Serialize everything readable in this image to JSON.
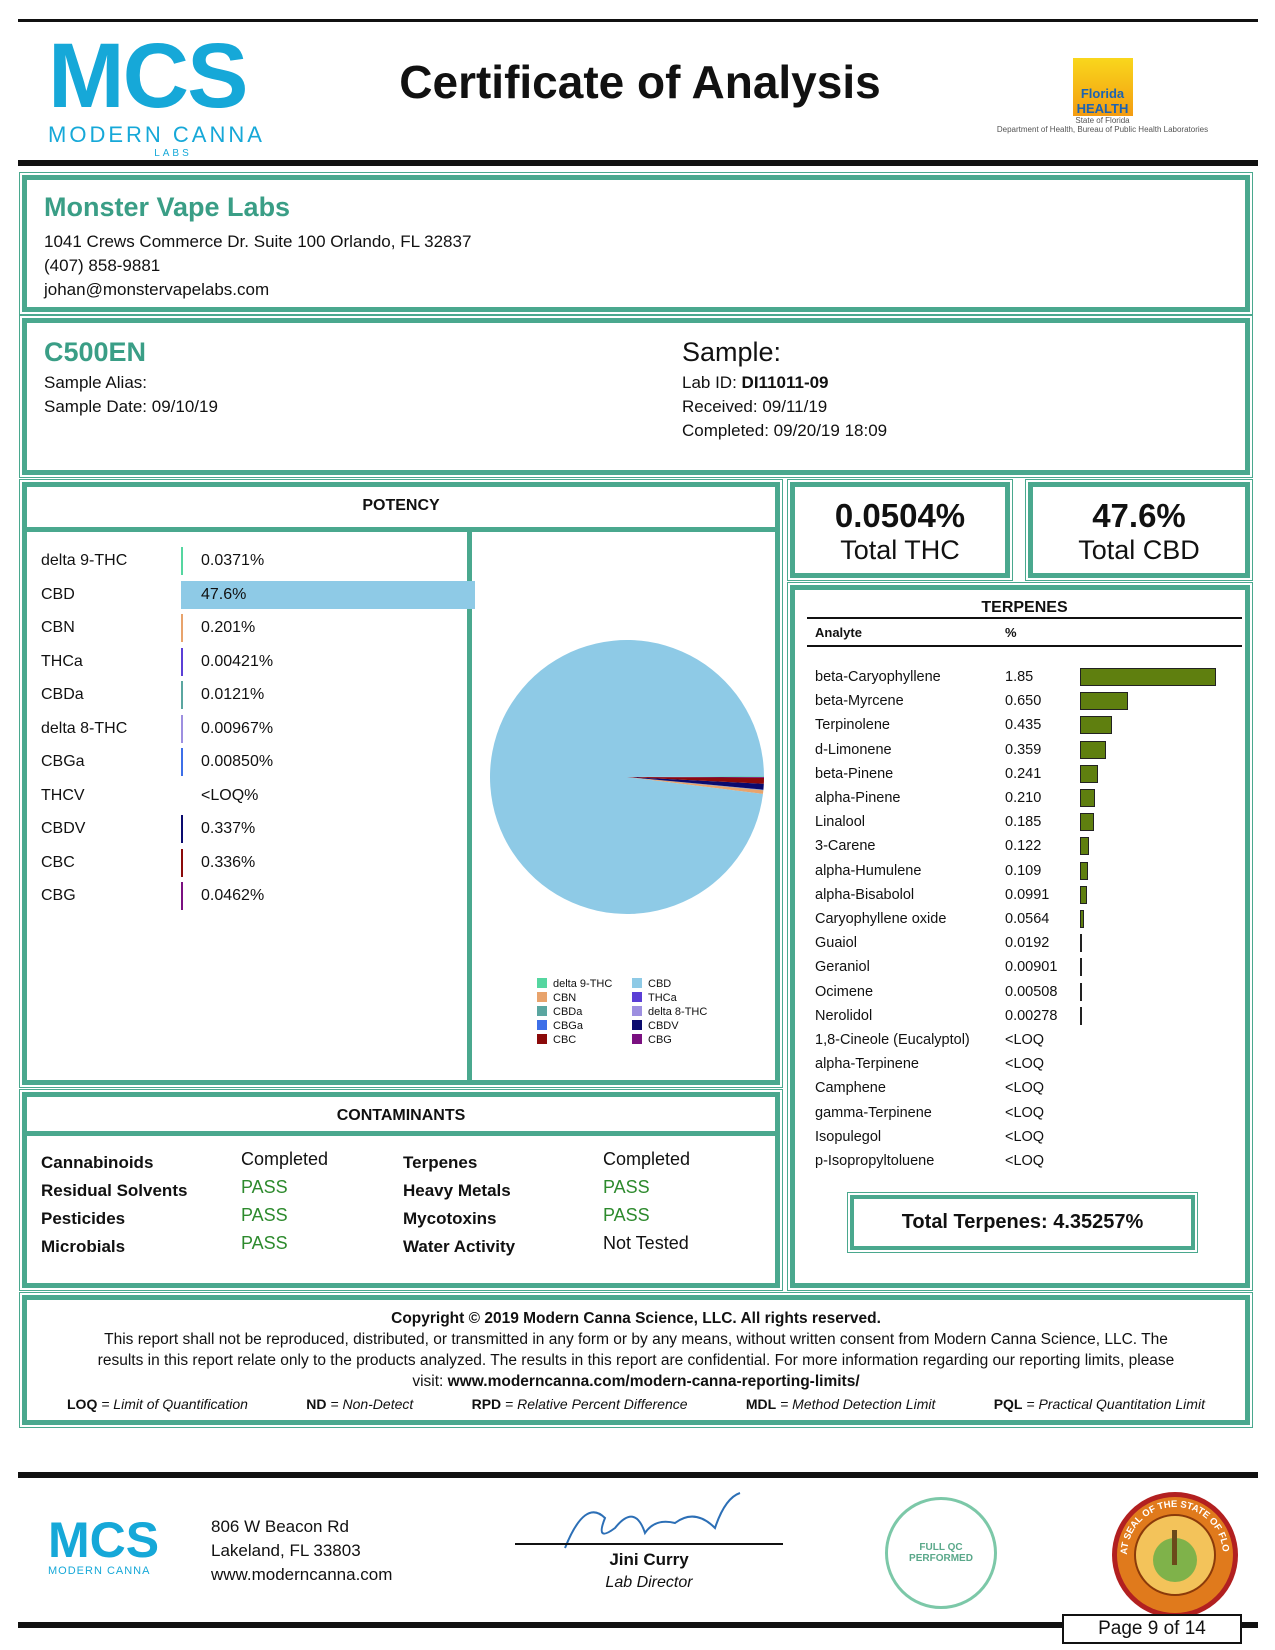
{
  "header": {
    "logo_text": "MCS",
    "logo_sub": "MODERN CANNA",
    "logo_labs": "LABS",
    "title": "Certificate of Analysis",
    "state_logo": "Florida HEALTH",
    "state_sub": "State of Florida",
    "state_dept": "Department of Health, Bureau of Public Health Laboratories"
  },
  "client": {
    "name": "Monster Vape Labs",
    "address": "1041 Crews Commerce Dr. Suite 100 Orlando, FL 32837",
    "phone": "(407) 858-9881",
    "email": "johan@monstervapelabs.com"
  },
  "sample": {
    "code": "C500EN",
    "alias_label": "Sample Alias:",
    "date_label": "Sample Date:",
    "date": "09/10/19",
    "heading": "Sample:",
    "lab_id_label": "Lab ID:",
    "lab_id": "DI11011-09",
    "received_label": "Received:",
    "received": "09/11/19",
    "completed_label": "Completed:",
    "completed": "09/20/19 18:09"
  },
  "potency": {
    "title": "POTENCY",
    "rows": [
      {
        "name": "delta 9-THC",
        "value": "0.0371%",
        "pct": 0.0371,
        "color": "#55d6a0"
      },
      {
        "name": "CBD",
        "value": "47.6%",
        "pct": 47.6,
        "color": "#8ecae6"
      },
      {
        "name": "CBN",
        "value": "0.201%",
        "pct": 0.201,
        "color": "#e8a36c"
      },
      {
        "name": "THCa",
        "value": "0.00421%",
        "pct": 0.00421,
        "color": "#5b3fd6"
      },
      {
        "name": "CBDa",
        "value": "0.0121%",
        "pct": 0.0121,
        "color": "#5aa6a0"
      },
      {
        "name": "delta 8-THC",
        "value": "0.00967%",
        "pct": 0.00967,
        "color": "#9d8fe0"
      },
      {
        "name": "CBGa",
        "value": "0.00850%",
        "pct": 0.0085,
        "color": "#3d6fe8"
      },
      {
        "name": "THCV",
        "value": "<LOQ%",
        "pct": 0,
        "color": "#888888"
      },
      {
        "name": "CBDV",
        "value": "0.337%",
        "pct": 0.337,
        "color": "#0a0a6e"
      },
      {
        "name": "CBC",
        "value": "0.336%",
        "pct": 0.336,
        "color": "#8b0a0a"
      },
      {
        "name": "CBG",
        "value": "0.0462%",
        "pct": 0.0462,
        "color": "#7a1080"
      }
    ],
    "legend": [
      "delta 9-THC",
      "CBD",
      "CBN",
      "THCa",
      "CBDa",
      "delta 8-THC",
      "CBGa",
      "CBDV",
      "CBC",
      "CBG"
    ]
  },
  "totals": {
    "thc_value": "0.0504%",
    "thc_label": "Total THC",
    "cbd_value": "47.6%",
    "cbd_label": "Total CBD"
  },
  "terpenes": {
    "title": "TERPENES",
    "col_analyte": "Analyte",
    "col_pct": "%",
    "rows": [
      {
        "name": "beta-Caryophyllene",
        "value": "1.85",
        "pct": 1.85
      },
      {
        "name": "beta-Myrcene",
        "value": "0.650",
        "pct": 0.65
      },
      {
        "name": "Terpinolene",
        "value": "0.435",
        "pct": 0.435
      },
      {
        "name": "d-Limonene",
        "value": "0.359",
        "pct": 0.359
      },
      {
        "name": "beta-Pinene",
        "value": "0.241",
        "pct": 0.241
      },
      {
        "name": "alpha-Pinene",
        "value": "0.210",
        "pct": 0.21
      },
      {
        "name": "Linalool",
        "value": "0.185",
        "pct": 0.185
      },
      {
        "name": "3-Carene",
        "value": "0.122",
        "pct": 0.122
      },
      {
        "name": "alpha-Humulene",
        "value": "0.109",
        "pct": 0.109
      },
      {
        "name": "alpha-Bisabolol",
        "value": "0.0991",
        "pct": 0.0991
      },
      {
        "name": "Caryophyllene oxide",
        "value": "0.0564",
        "pct": 0.0564
      },
      {
        "name": "Guaiol",
        "value": "0.0192",
        "pct": 0.0192
      },
      {
        "name": "Geraniol",
        "value": "0.00901",
        "pct": 0.00901
      },
      {
        "name": "Ocimene",
        "value": "0.00508",
        "pct": 0.00508
      },
      {
        "name": "Nerolidol",
        "value": "0.00278",
        "pct": 0.00278
      },
      {
        "name": "1,8-Cineole (Eucalyptol)",
        "value": "<LOQ",
        "pct": 0
      },
      {
        "name": "alpha-Terpinene",
        "value": "<LOQ",
        "pct": 0
      },
      {
        "name": "Camphene",
        "value": "<LOQ",
        "pct": 0
      },
      {
        "name": "gamma-Terpinene",
        "value": "<LOQ",
        "pct": 0
      },
      {
        "name": "Isopulegol",
        "value": "<LOQ",
        "pct": 0
      },
      {
        "name": "p-Isopropyltoluene",
        "value": "<LOQ",
        "pct": 0
      }
    ],
    "total": "Total Terpenes: 4.35257%"
  },
  "contaminants": {
    "title": "CONTAMINANTS",
    "items": [
      {
        "name": "Cannabinoids",
        "status": "Completed"
      },
      {
        "name": "Residual Solvents",
        "status": "PASS"
      },
      {
        "name": "Pesticides",
        "status": "PASS"
      },
      {
        "name": "Microbials",
        "status": "PASS"
      },
      {
        "name": "Terpenes",
        "status": "Completed"
      },
      {
        "name": "Heavy Metals",
        "status": "PASS"
      },
      {
        "name": "Mycotoxins",
        "status": "PASS"
      },
      {
        "name": "Water Activity",
        "status": "Not Tested"
      }
    ]
  },
  "notice": {
    "copyright": "Copyright © 2019 Modern Canna Science, LLC. All rights reserved.",
    "body": "This report shall not be reproduced, distributed, or transmitted in any form or by any means, without written consent from Modern Canna Science, LLC.  The results in this report relate only to the products analyzed. The results in this report are confidential. For more information regarding our reporting limits, please visit: ",
    "link": "www.moderncanna.com/modern-canna-reporting-limits/",
    "defs": [
      {
        "abbr": "LOQ",
        "def": " = Limit of Quantification"
      },
      {
        "abbr": "ND",
        "def": " = Non-Detect"
      },
      {
        "abbr": "RPD",
        "def": " = Relative Percent Difference"
      },
      {
        "abbr": "MDL",
        "def": " = Method Detection Limit"
      },
      {
        "abbr": "PQL",
        "def": " = Practical Quantitation Limit"
      }
    ]
  },
  "footer": {
    "address1": "806 W Beacon Rd",
    "address2": "Lakeland, FL 33803",
    "website": "www.moderncanna.com",
    "signer": "Jini Curry",
    "signer_title": "Lab Director",
    "badge_text": "FULL QC PERFORMED",
    "seal_text": "GREAT SEAL OF THE STATE OF FLORIDA",
    "page": "Page 9 of 14"
  }
}
